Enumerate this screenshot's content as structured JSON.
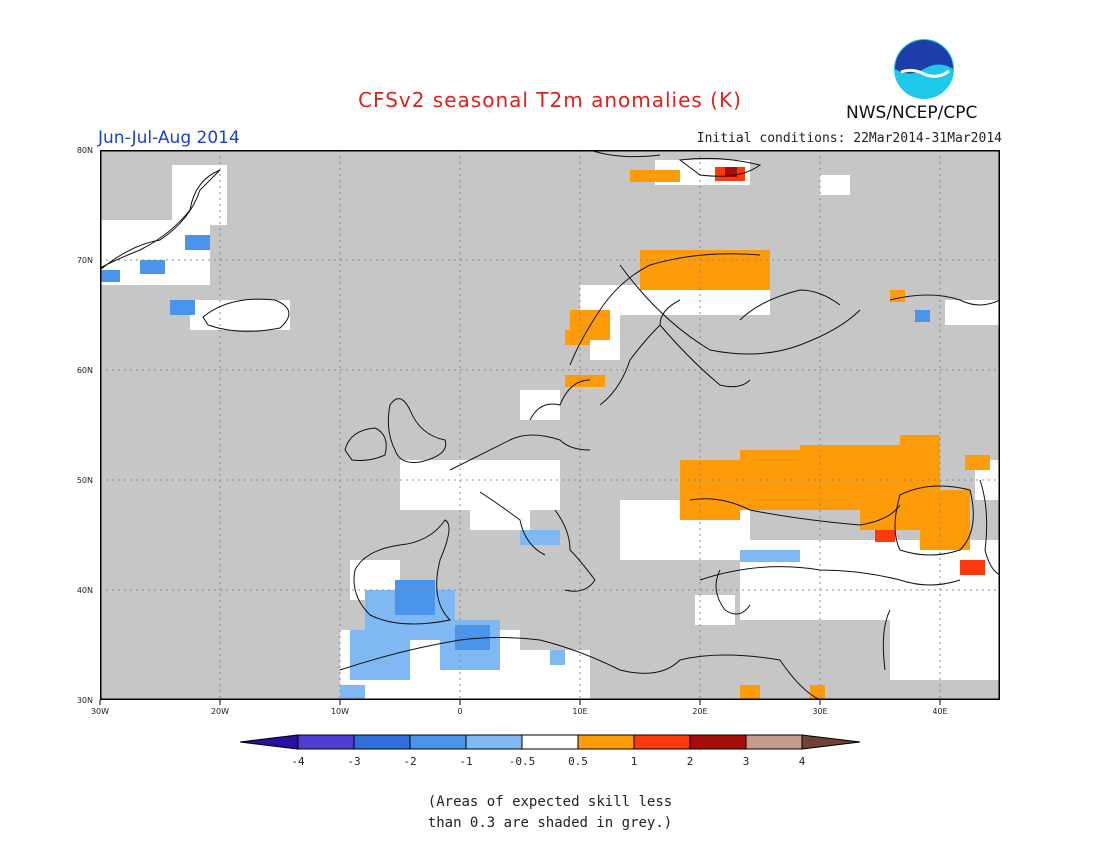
{
  "header": {
    "title": "CFSv2 seasonal T2m anomalies (K)",
    "period": "Jun-Jul-Aug 2014",
    "initial_conditions": "Initial conditions: 22Mar2014-31Mar2014",
    "agency": "NWS/NCEP/CPC",
    "logo_text": "NOAA"
  },
  "axes": {
    "lon_labels": [
      "30W",
      "20W",
      "10W",
      "0",
      "10E",
      "20E",
      "30E",
      "40E"
    ],
    "lat_labels": [
      "80N",
      "70N",
      "60N",
      "50N",
      "40N",
      "30N"
    ]
  },
  "legend": {
    "labels": [
      "-4",
      "-3",
      "-2",
      "-1",
      "-0.5",
      "0.5",
      "1",
      "2",
      "3",
      "4"
    ],
    "colors": [
      "#2a0fa5",
      "#4d3fd4",
      "#2e6fdc",
      "#4a94ec",
      "#7fb8f2",
      "#ffffff",
      "#fd9b08",
      "#fd3a0e",
      "#a50d0a",
      "#c39c8c",
      "#6e4235"
    ]
  },
  "colors": {
    "grey_skill": "#c6c6c6",
    "ocean": "#c6c6c6",
    "neutral": "#ffffff",
    "coast": "#111111"
  },
  "footnote": {
    "line1": "(Areas of expected skill less",
    "line2": "than 0.3 are shaded in grey.)"
  }
}
